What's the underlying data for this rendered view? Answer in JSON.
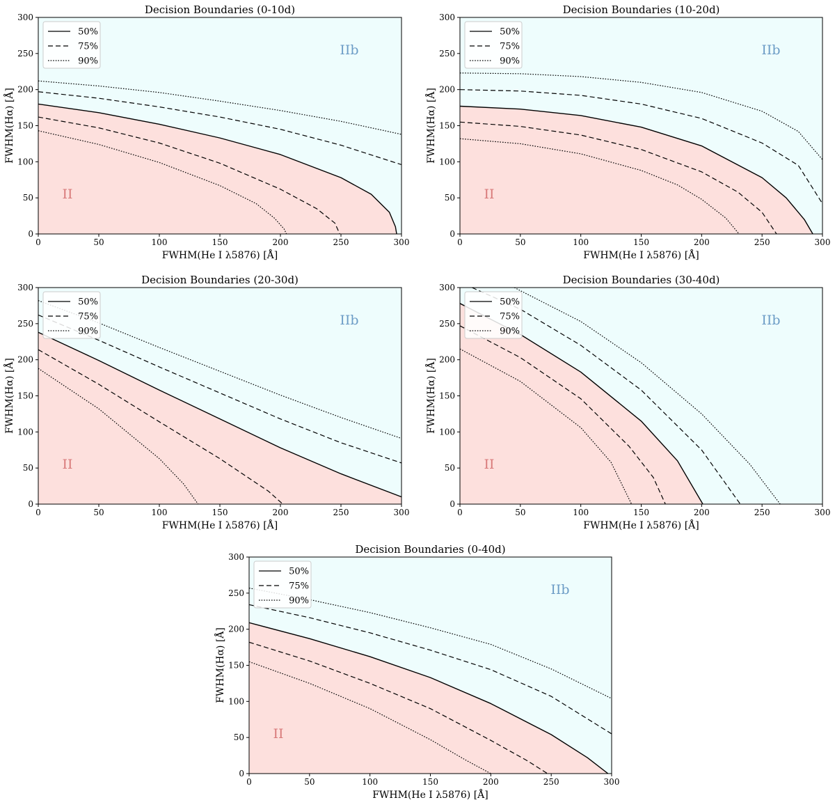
{
  "figure": {
    "colors": {
      "II": "#fde0dd",
      "IIb": "#eefdfd",
      "II_text": "#d87a7a",
      "IIb_text": "#6c9cc6",
      "line": "#000000"
    }
  },
  "chart_data": [
    {
      "type": "line",
      "title": "Decision Boundaries (0-10d)",
      "xlabel": "FWHM(He I λ5876) [Å]",
      "ylabel": "FWHM(Hα) [Å]",
      "xlim": [
        0,
        300
      ],
      "ylim": [
        0,
        300
      ],
      "xticks": [
        0,
        50,
        100,
        150,
        200,
        250,
        300
      ],
      "yticks": [
        0,
        50,
        100,
        150,
        200,
        250,
        300
      ],
      "region_labels": {
        "II": "II",
        "IIb": "IIb"
      },
      "legend": [
        "50%",
        "75%",
        "90%"
      ],
      "series": [
        {
          "name": "50%",
          "style": "solid",
          "x": [
            0,
            50,
            100,
            150,
            200,
            250,
            275,
            290,
            295,
            296
          ],
          "y": [
            180,
            168,
            152,
            133,
            110,
            78,
            55,
            30,
            10,
            0
          ]
        },
        {
          "name": "75%",
          "style": "dashed",
          "x": [
            0,
            50,
            100,
            150,
            200,
            230,
            245,
            249
          ],
          "y": [
            162,
            147,
            126,
            98,
            62,
            35,
            15,
            0
          ]
        },
        {
          "name": "90%",
          "style": "dotted",
          "x": [
            0,
            50,
            100,
            150,
            180,
            195,
            203,
            205
          ],
          "y": [
            143,
            124,
            99,
            67,
            42,
            22,
            7,
            0
          ]
        },
        {
          "name": "75% (upper)",
          "style": "dashed",
          "x": [
            0,
            50,
            100,
            150,
            200,
            250,
            300
          ],
          "y": [
            197,
            188,
            176,
            162,
            145,
            123,
            96
          ]
        },
        {
          "name": "90% (upper)",
          "style": "dotted",
          "x": [
            0,
            50,
            100,
            150,
            200,
            250,
            300
          ],
          "y": [
            212,
            205,
            196,
            184,
            171,
            156,
            138
          ]
        }
      ]
    },
    {
      "type": "line",
      "title": "Decision Boundaries (10-20d)",
      "xlabel": "FWHM(He I λ5876) [Å]",
      "ylabel": "FWHM(Hα) [Å]",
      "xlim": [
        0,
        300
      ],
      "ylim": [
        0,
        300
      ],
      "xticks": [
        0,
        50,
        100,
        150,
        200,
        250,
        300
      ],
      "yticks": [
        0,
        50,
        100,
        150,
        200,
        250,
        300
      ],
      "region_labels": {
        "II": "II",
        "IIb": "IIb"
      },
      "legend": [
        "50%",
        "75%",
        "90%"
      ],
      "series": [
        {
          "name": "50%",
          "style": "solid",
          "x": [
            0,
            50,
            100,
            150,
            200,
            250,
            270,
            285,
            292
          ],
          "y": [
            177,
            173,
            164,
            148,
            122,
            78,
            50,
            20,
            0
          ]
        },
        {
          "name": "75%",
          "style": "dashed",
          "x": [
            0,
            50,
            100,
            150,
            200,
            230,
            250,
            262
          ],
          "y": [
            155,
            149,
            137,
            117,
            86,
            58,
            30,
            0
          ]
        },
        {
          "name": "90%",
          "style": "dotted",
          "x": [
            0,
            50,
            100,
            150,
            180,
            200,
            220,
            231
          ],
          "y": [
            132,
            125,
            111,
            88,
            68,
            48,
            22,
            0
          ]
        },
        {
          "name": "75% (upper)",
          "style": "dashed",
          "x": [
            0,
            50,
            100,
            150,
            200,
            250,
            280,
            300
          ],
          "y": [
            200,
            198,
            192,
            180,
            160,
            126,
            95,
            42
          ]
        },
        {
          "name": "90% (upper)",
          "style": "dotted",
          "x": [
            0,
            50,
            100,
            150,
            200,
            250,
            280,
            300
          ],
          "y": [
            223,
            222,
            218,
            210,
            196,
            170,
            142,
            103
          ]
        }
      ]
    },
    {
      "type": "line",
      "title": "Decision Boundaries (20-30d)",
      "xlabel": "FWHM(He I λ5876) [Å]",
      "ylabel": "FWHM(Hα) [Å]",
      "xlim": [
        0,
        300
      ],
      "ylim": [
        0,
        300
      ],
      "xticks": [
        0,
        50,
        100,
        150,
        200,
        250,
        300
      ],
      "yticks": [
        0,
        50,
        100,
        150,
        200,
        250,
        300
      ],
      "region_labels": {
        "II": "II",
        "IIb": "IIb"
      },
      "legend": [
        "50%",
        "75%",
        "90%"
      ],
      "series": [
        {
          "name": "50%",
          "style": "solid",
          "x": [
            0,
            50,
            100,
            150,
            200,
            250,
            300
          ],
          "y": [
            238,
            199,
            158,
            118,
            78,
            42,
            10
          ]
        },
        {
          "name": "75%",
          "style": "dashed",
          "x": [
            0,
            50,
            100,
            150,
            190,
            202
          ],
          "y": [
            214,
            166,
            114,
            63,
            18,
            0
          ]
        },
        {
          "name": "90%",
          "style": "dotted",
          "x": [
            0,
            50,
            100,
            120,
            132
          ],
          "y": [
            188,
            132,
            63,
            28,
            0
          ]
        },
        {
          "name": "75% (upper)",
          "style": "dashed",
          "x": [
            0,
            50,
            100,
            150,
            200,
            250,
            300
          ],
          "y": [
            262,
            227,
            190,
            154,
            118,
            85,
            57
          ]
        },
        {
          "name": "90% (upper)",
          "style": "dotted",
          "x": [
            0,
            50,
            100,
            150,
            200,
            250,
            300
          ],
          "y": [
            282,
            251,
            217,
            184,
            151,
            120,
            91
          ]
        }
      ]
    },
    {
      "type": "line",
      "title": "Decision Boundaries (30-40d)",
      "xlabel": "FWHM(He I λ5876) [Å]",
      "ylabel": "FWHM(Hα) [Å]",
      "xlim": [
        0,
        300
      ],
      "ylim": [
        0,
        300
      ],
      "xticks": [
        0,
        50,
        100,
        150,
        200,
        250,
        300
      ],
      "yticks": [
        0,
        50,
        100,
        150,
        200,
        250,
        300
      ],
      "region_labels": {
        "II": "II",
        "IIb": "IIb"
      },
      "legend": [
        "50%",
        "75%",
        "90%"
      ],
      "series": [
        {
          "name": "50%",
          "style": "solid",
          "x": [
            0,
            50,
            100,
            150,
            180,
            201
          ],
          "y": [
            278,
            235,
            183,
            115,
            60,
            0
          ]
        },
        {
          "name": "75%",
          "style": "dashed",
          "x": [
            0,
            50,
            100,
            140,
            160,
            170
          ],
          "y": [
            247,
            203,
            146,
            80,
            37,
            0
          ]
        },
        {
          "name": "90%",
          "style": "dotted",
          "x": [
            0,
            50,
            100,
            125,
            142
          ],
          "y": [
            215,
            170,
            106,
            58,
            0
          ]
        },
        {
          "name": "75% (upper)",
          "style": "dashed",
          "x": [
            10,
            50,
            100,
            150,
            200,
            232
          ],
          "y": [
            300,
            270,
            220,
            158,
            75,
            0
          ]
        },
        {
          "name": "90% (upper)",
          "style": "dotted",
          "x": [
            45,
            100,
            150,
            200,
            240,
            265
          ],
          "y": [
            300,
            253,
            196,
            125,
            55,
            0
          ]
        }
      ]
    },
    {
      "type": "line",
      "title": "Decision Boundaries (0-40d)",
      "xlabel": "FWHM(He I λ5876) [Å]",
      "ylabel": "FWHM(Hα) [Å]",
      "xlim": [
        0,
        300
      ],
      "ylim": [
        0,
        300
      ],
      "xticks": [
        0,
        50,
        100,
        150,
        200,
        250,
        300
      ],
      "yticks": [
        0,
        50,
        100,
        150,
        200,
        250,
        300
      ],
      "region_labels": {
        "II": "II",
        "IIb": "IIb"
      },
      "legend": [
        "50%",
        "75%",
        "90%"
      ],
      "series": [
        {
          "name": "50%",
          "style": "solid",
          "x": [
            0,
            50,
            100,
            150,
            200,
            250,
            280,
            297
          ],
          "y": [
            209,
            187,
            162,
            133,
            97,
            54,
            22,
            0
          ]
        },
        {
          "name": "75%",
          "style": "dashed",
          "x": [
            0,
            50,
            100,
            150,
            200,
            230,
            247
          ],
          "y": [
            182,
            156,
            125,
            90,
            46,
            18,
            0
          ]
        },
        {
          "name": "90%",
          "style": "dotted",
          "x": [
            0,
            50,
            100,
            150,
            180,
            200
          ],
          "y": [
            155,
            125,
            90,
            47,
            18,
            0
          ]
        },
        {
          "name": "75% (upper)",
          "style": "dashed",
          "x": [
            0,
            50,
            100,
            150,
            200,
            250,
            300
          ],
          "y": [
            234,
            216,
            195,
            171,
            144,
            107,
            55
          ]
        },
        {
          "name": "90% (upper)",
          "style": "dotted",
          "x": [
            0,
            50,
            100,
            150,
            200,
            250,
            300
          ],
          "y": [
            257,
            241,
            223,
            202,
            179,
            145,
            104
          ]
        }
      ]
    }
  ]
}
